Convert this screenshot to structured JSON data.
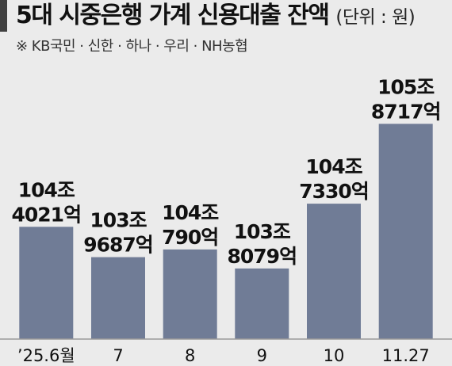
{
  "title": "5대 시중은행 가계 신용대출 잔액",
  "unit_note": "(단위 : 원)",
  "subtitle": "※ KB국민 · 신한 · 하나 · 우리 · NH농협",
  "colors": {
    "bar": "#707c96",
    "background": "#ebebeb",
    "baseline": "#9a9a9a"
  },
  "chart_data": {
    "type": "bar",
    "title": "5대 시중은행 가계 신용대출 잔액",
    "subtitle": "※ KB국민 · 신한 · 하나 · 우리 · NH농협",
    "unit": "(단위 : 원)",
    "xlabel": "",
    "ylabel": "",
    "categories": [
      "’25.6월",
      "7",
      "8",
      "9",
      "10",
      "11.27"
    ],
    "values_eok": [
      1044021,
      1039687,
      1040790,
      1038079,
      1047330,
      1058717
    ],
    "labels": [
      [
        "104조",
        "4021억"
      ],
      [
        "103조",
        "9687억"
      ],
      [
        "104조",
        "790억"
      ],
      [
        "103조",
        "8079억"
      ],
      [
        "104조",
        "7330억"
      ],
      [
        "105조",
        "8717억"
      ]
    ],
    "y_axis_visible": false,
    "grid": false,
    "legend": "none"
  }
}
